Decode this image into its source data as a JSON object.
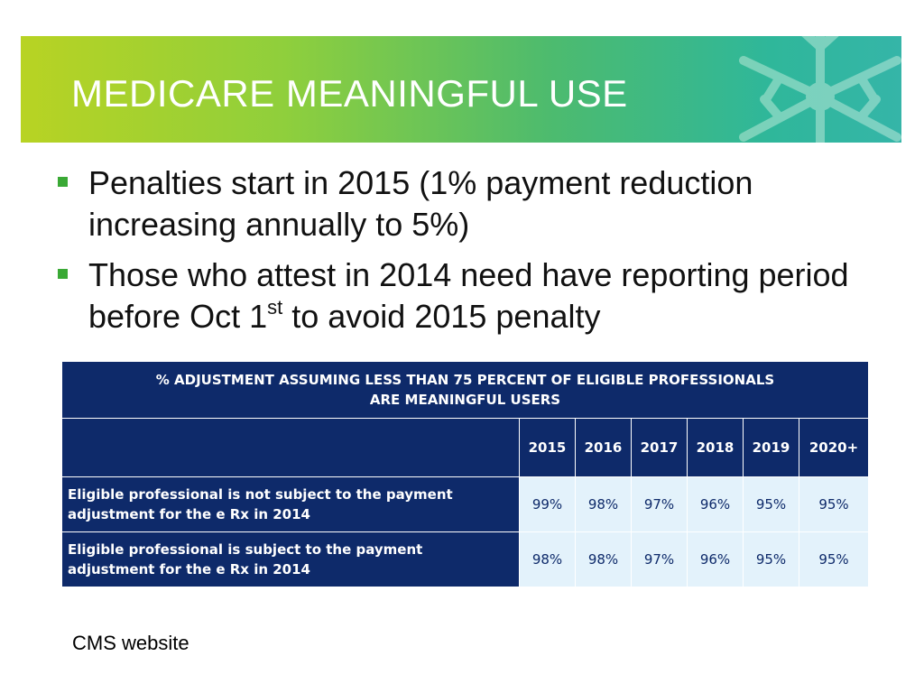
{
  "slide": {
    "title": "MEDICARE MEANINGFUL USE",
    "accent_colors": {
      "banner_start": "#b8d323",
      "banner_end": "#35b5a8",
      "bullet": "#3aa935",
      "table_header": "#0e2a6a",
      "table_cell": "#e3f2fb"
    },
    "bullets": [
      {
        "text": "Penalties start in 2015 (1% payment reduction increasing annually to 5%)"
      },
      {
        "text_before": "Those who attest in 2014 need have reporting period before Oct 1",
        "superscript": "st",
        "text_after": " to avoid 2015 penalty"
      }
    ],
    "table": {
      "title_line1": "% ADJUSTMENT ASSUMING LESS THAN 75 PERCENT OF ELIGIBLE PROFESSIONALS",
      "title_line2": "ARE MEANINGFUL USERS",
      "years": [
        "2015",
        "2016",
        "2017",
        "2018",
        "2019",
        "2020+"
      ],
      "rows": [
        {
          "label": "Eligible professional is not subject to the payment adjustment for the e  Rx in 2014",
          "values": [
            "99%",
            "98%",
            "97%",
            "96%",
            "95%",
            "95%"
          ]
        },
        {
          "label": "Eligible professional is subject to the payment adjustment for the e  Rx in 2014",
          "values": [
            "98%",
            "98%",
            "97%",
            "96%",
            "95%",
            "95%"
          ]
        }
      ]
    },
    "source": "CMS website"
  }
}
